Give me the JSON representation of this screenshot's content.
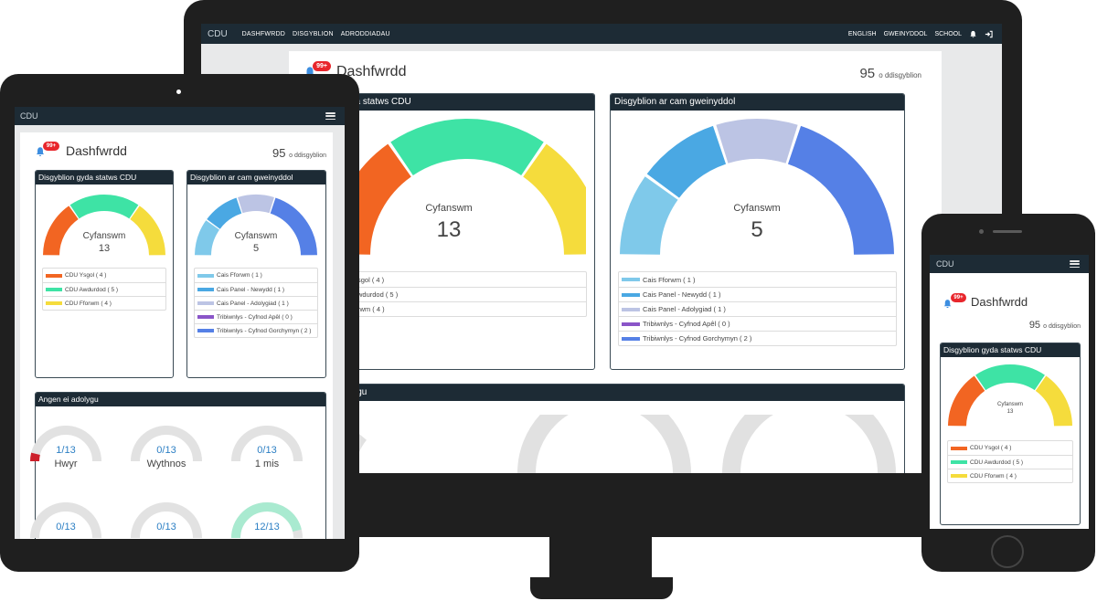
{
  "brand": "CDU",
  "nav": {
    "links": [
      "DASHFWRDD",
      "DISGYBLION",
      "ADRODDIADAU"
    ],
    "right": [
      "ENGLISH",
      "GWEINYDDOL",
      "SCHOOL"
    ]
  },
  "dashboard": {
    "title": "Dashfwrdd",
    "badge": "99+",
    "student_count": "95",
    "student_count_label": "o ddisgyblion"
  },
  "panel_status": {
    "title": "Disgyblion gyda statws CDU",
    "title_visible_fragment": "da statws CDU",
    "total_label": "Cyfanswm",
    "total": "13",
    "items": [
      {
        "label": "CDU Ysgol ( 4 )",
        "value": 4,
        "color": "#f26522"
      },
      {
        "label": "CDU Awdurdod ( 5 )",
        "value": 5,
        "color": "#3ee3a5"
      },
      {
        "label": "CDU Fforwm ( 4 )",
        "value": 4,
        "color": "#f5dc3c"
      }
    ],
    "items_visible_fragment": [
      "sgol ( 4 )",
      "wdurdod ( 5 )",
      "rwm ( 4 )"
    ]
  },
  "panel_admin": {
    "title": "Disgyblion ar cam gweinyddol",
    "total_label": "Cyfanswm",
    "total": "5",
    "items": [
      {
        "label": "Cais Fforwm ( 1 )",
        "value": 1,
        "color": "#7fc9ea"
      },
      {
        "label": "Cais Panel - Newydd ( 1 )",
        "value": 1,
        "color": "#4aa8e3"
      },
      {
        "label": "Cais Panel - Adolygiad ( 1 )",
        "value": 1,
        "color": "#bcc4e4"
      },
      {
        "label": "Tribiwnlys - Cyfnod Apêl ( 0 )",
        "value": 0,
        "color": "#8a55c8"
      },
      {
        "label": "Tribiwnlys - Cyfnod Gorchymyn ( 2 )",
        "value": 2,
        "color": "#5580e6"
      }
    ]
  },
  "panel_review": {
    "title": "Angen ei adolygu",
    "title_visible_fragment": "lygu",
    "rings": [
      {
        "value": "1/13",
        "label": "Hwyr",
        "fraction": 0.077,
        "color": "#cc1f2a"
      },
      {
        "value": "0/13",
        "label": "Wythnos",
        "fraction": 0,
        "color": "#cc1f2a"
      },
      {
        "value": "0/13",
        "label": "1 mis",
        "fraction": 0,
        "color": "#cc1f2a"
      },
      {
        "value": "0/13",
        "label": "",
        "fraction": 0,
        "color": "#cc1f2a"
      },
      {
        "value": "0/13",
        "label": "",
        "fraction": 0,
        "color": "#cc1f2a"
      },
      {
        "value": "12/13",
        "label": "",
        "fraction": 0.923,
        "color": "#a9ead0"
      }
    ]
  },
  "icons": {
    "bell": "bell-icon",
    "logout": "sign-out-icon",
    "menu": "hamburger-icon"
  }
}
